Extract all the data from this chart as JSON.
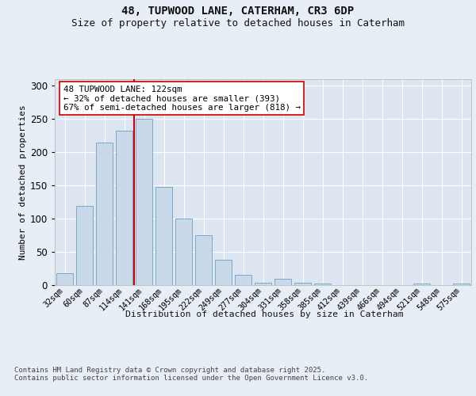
{
  "title1": "48, TUPWOOD LANE, CATERHAM, CR3 6DP",
  "title2": "Size of property relative to detached houses in Caterham",
  "xlabel": "Distribution of detached houses by size in Caterham",
  "ylabel": "Number of detached properties",
  "categories": [
    "32sqm",
    "60sqm",
    "87sqm",
    "114sqm",
    "141sqm",
    "168sqm",
    "195sqm",
    "222sqm",
    "249sqm",
    "277sqm",
    "304sqm",
    "331sqm",
    "358sqm",
    "385sqm",
    "412sqm",
    "439sqm",
    "466sqm",
    "494sqm",
    "521sqm",
    "548sqm",
    "575sqm"
  ],
  "values": [
    18,
    119,
    215,
    232,
    250,
    148,
    100,
    75,
    38,
    15,
    4,
    9,
    3,
    2,
    0,
    0,
    0,
    0,
    2,
    0,
    2
  ],
  "bar_color": "#c9d9ea",
  "bar_edge_color": "#7aaac8",
  "background_color": "#e8eef5",
  "plot_bg_color": "#dde6f0",
  "grid_color": "#ffffff",
  "vline_position": 3.5,
  "vline_color": "#cc0000",
  "annotation_text": "48 TUPWOOD LANE: 122sqm\n← 32% of detached houses are smaller (393)\n67% of semi-detached houses are larger (818) →",
  "annotation_box_facecolor": "#ffffff",
  "annotation_box_edgecolor": "#cc0000",
  "footer_text": "Contains HM Land Registry data © Crown copyright and database right 2025.\nContains public sector information licensed under the Open Government Licence v3.0.",
  "ylim": [
    0,
    310
  ],
  "yticks": [
    0,
    50,
    100,
    150,
    200,
    250,
    300
  ],
  "title1_fontsize": 10,
  "title2_fontsize": 9
}
